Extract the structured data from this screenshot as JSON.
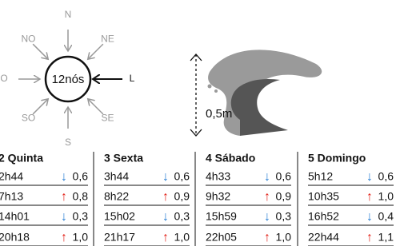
{
  "compass": {
    "speed": "12nós",
    "directions": [
      "N",
      "NE",
      "L",
      "SE",
      "S",
      "SO",
      "O",
      "NO"
    ]
  },
  "wave": {
    "height": "0,5m"
  },
  "days": [
    {
      "title": "2 Quinta",
      "rows": [
        [
          "2h44",
          "↓",
          "0,6"
        ],
        [
          "7h13",
          "↑",
          "0,8"
        ],
        [
          "14h01",
          "↓",
          "0,3"
        ],
        [
          "20h18",
          "↑",
          "1,0"
        ]
      ]
    },
    {
      "title": "3 Sexta",
      "rows": [
        [
          "3h44",
          "↓",
          "0,6"
        ],
        [
          "8h22",
          "↑",
          "0,9"
        ],
        [
          "15h02",
          "↓",
          "0,3"
        ],
        [
          "21h17",
          "↑",
          "1,0"
        ]
      ]
    },
    {
      "title": "4 Sábado",
      "rows": [
        [
          "4h33",
          "↓",
          "0,6"
        ],
        [
          "9h32",
          "↑",
          "0,9"
        ],
        [
          "15h59",
          "↓",
          "0,3"
        ],
        [
          "22h05",
          "↑",
          "1,0"
        ]
      ]
    },
    {
      "title": "5 Domingo",
      "rows": [
        [
          "5h12",
          "↓",
          "0,6"
        ],
        [
          "10h35",
          "↑",
          "1,0"
        ],
        [
          "16h52",
          "↓",
          "0,4"
        ],
        [
          "22h44",
          "↑",
          "1,1"
        ]
      ]
    }
  ]
}
